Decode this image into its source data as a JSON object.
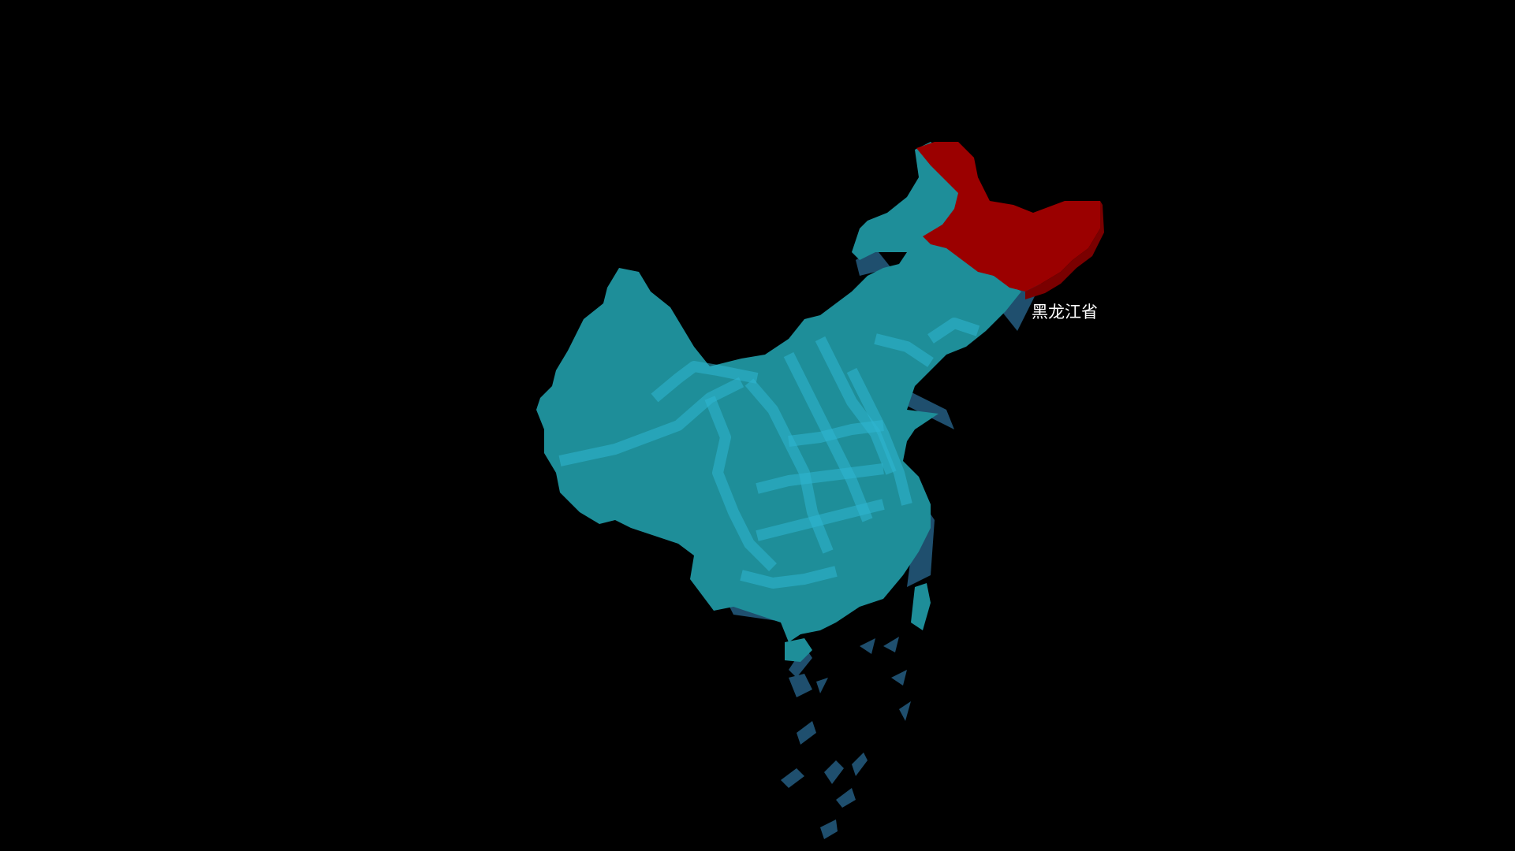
{
  "map": {
    "highlighted_region": {
      "name": "黑龙江省",
      "color": "#9b0000"
    },
    "colors": {
      "background": "#000000",
      "land_top": "#1e8e99",
      "land_side": "#1f4f6e",
      "boundary": "#2fb6d1",
      "islands": "#1f4f6e",
      "label": "#ffffff"
    }
  }
}
